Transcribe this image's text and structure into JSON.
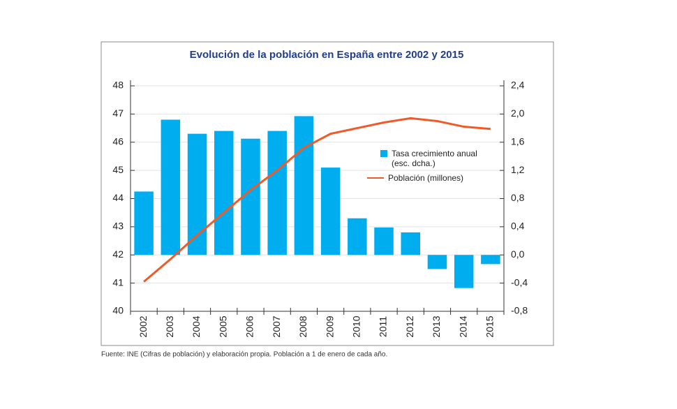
{
  "chart_data": {
    "type": "combo",
    "title": "Evolución de la población en España entre 2002 y 2015",
    "source": "Fuente: INE  (Cifras de población) y elaboración propia. Población a 1 de enero de cada año.",
    "categories": [
      "2002",
      "2003",
      "2004",
      "2005",
      "2006",
      "2007",
      "2008",
      "2009",
      "2010",
      "2011",
      "2012",
      "2013",
      "2014",
      "2015"
    ],
    "series": [
      {
        "name": "Tasa crecimiento anual (esc. dcha.)",
        "type": "bar",
        "axis": "y2",
        "color": "#00aeef",
        "values": [
          0.9,
          1.92,
          1.72,
          1.76,
          1.65,
          1.76,
          1.97,
          1.24,
          0.52,
          0.39,
          0.32,
          -0.2,
          -0.47,
          -0.13
        ]
      },
      {
        "name": "Población (millones)",
        "type": "line",
        "color": "#f05a28",
        "values": [
          41.05,
          41.85,
          42.7,
          43.5,
          44.3,
          45.0,
          45.8,
          46.3,
          46.5,
          46.7,
          46.85,
          46.75,
          46.55,
          46.47
        ]
      }
    ],
    "ylim": [
      40,
      48
    ],
    "yticks": [
      40,
      41,
      42,
      43,
      44,
      45,
      46,
      47,
      48
    ],
    "y2lim": [
      -0.8,
      2.4
    ],
    "y2ticks": [
      {
        "value": -0.8,
        "label": "-0,8"
      },
      {
        "value": -0.4,
        "label": "-0,4"
      },
      {
        "value": 0,
        "label": "0,0"
      },
      {
        "value": 0.4,
        "label": "0,4"
      },
      {
        "value": 0.8,
        "label": "0,8"
      },
      {
        "value": 1.2,
        "label": "1,2"
      },
      {
        "value": 1.6,
        "label": "1,6"
      },
      {
        "value": 2.0,
        "label": "2,0"
      },
      {
        "value": 2.4,
        "label": "2,4"
      }
    ],
    "grid": true
  }
}
